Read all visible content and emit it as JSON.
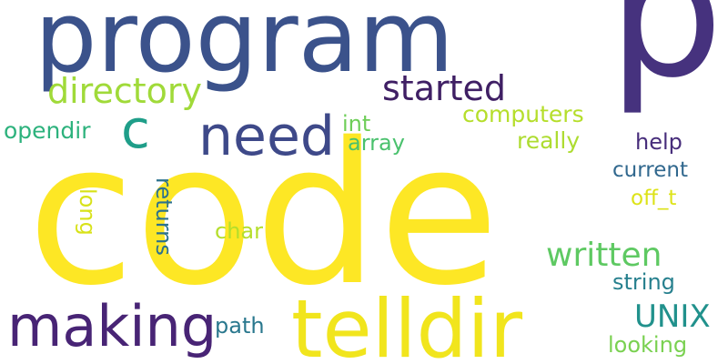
{
  "cloud": {
    "background": "#ffffff",
    "words": [
      {
        "id": "code",
        "text": "code",
        "color": "#fde725"
      },
      {
        "id": "program",
        "text": "program",
        "color": "#3b528b"
      },
      {
        "id": "p",
        "text": "p",
        "color": "#46327e"
      },
      {
        "id": "telldir",
        "text": "telldir",
        "color": "#f1e51d"
      },
      {
        "id": "making",
        "text": "making",
        "color": "#482475"
      },
      {
        "id": "need",
        "text": "need",
        "color": "#3e4989"
      },
      {
        "id": "c",
        "text": "c",
        "color": "#1f9e89"
      },
      {
        "id": "directory",
        "text": "directory",
        "color": "#a0da39"
      },
      {
        "id": "started",
        "text": "started",
        "color": "#3f1f64"
      },
      {
        "id": "written",
        "text": "written",
        "color": "#5ec962"
      },
      {
        "id": "unix",
        "text": "UNIX",
        "color": "#21918c"
      },
      {
        "id": "computers",
        "text": "computers",
        "color": "#b5de2b"
      },
      {
        "id": "really",
        "text": "really",
        "color": "#addc30"
      },
      {
        "id": "help",
        "text": "help",
        "color": "#472d7b"
      },
      {
        "id": "current",
        "text": "current",
        "color": "#31688e"
      },
      {
        "id": "off-t",
        "text": "off_t",
        "color": "#dde318"
      },
      {
        "id": "opendir",
        "text": "opendir",
        "color": "#2db27d"
      },
      {
        "id": "int",
        "text": "int",
        "color": "#6ece58"
      },
      {
        "id": "array",
        "text": "array",
        "color": "#4ac16d"
      },
      {
        "id": "long",
        "text": "long",
        "color": "#d8e219"
      },
      {
        "id": "returns",
        "text": "returns",
        "color": "#2c728e"
      },
      {
        "id": "char",
        "text": "char",
        "color": "#b5de2b"
      },
      {
        "id": "path",
        "text": "path",
        "color": "#2a788e"
      },
      {
        "id": "string",
        "text": "string",
        "color": "#27808e"
      },
      {
        "id": "looking",
        "text": "looking",
        "color": "#7ad151"
      }
    ]
  }
}
